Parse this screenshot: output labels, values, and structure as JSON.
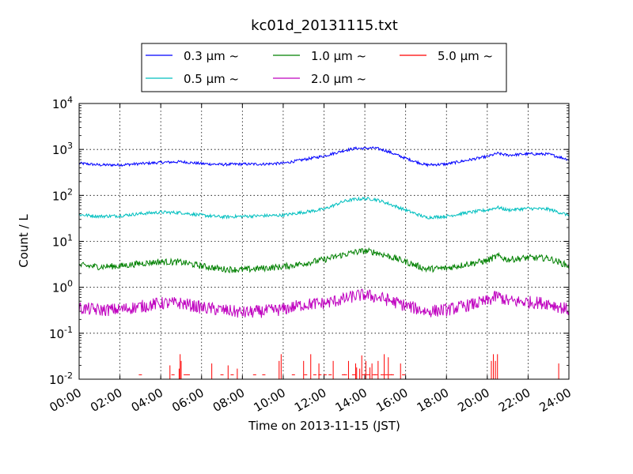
{
  "chart_data": {
    "type": "line",
    "title": "kc01d_20131115.txt",
    "xlabel": "Time on 2013-11-15 (JST)",
    "ylabel": "Count / L",
    "yscale": "log",
    "ylim": [
      0.01,
      10000
    ],
    "xlim_hours": [
      0,
      24
    ],
    "x_ticks": [
      "00:00",
      "02:00",
      "04:00",
      "06:00",
      "08:00",
      "10:00",
      "12:00",
      "14:00",
      "16:00",
      "18:00",
      "20:00",
      "22:00",
      "24:00"
    ],
    "y_ticks": [
      {
        "base": "10",
        "exp": "-2",
        "value": 0.01
      },
      {
        "base": "10",
        "exp": "-1",
        "value": 0.1
      },
      {
        "base": "10",
        "exp": "0",
        "value": 1
      },
      {
        "base": "10",
        "exp": "1",
        "value": 10
      },
      {
        "base": "10",
        "exp": "2",
        "value": 100
      },
      {
        "base": "10",
        "exp": "3",
        "value": 1000
      },
      {
        "base": "10",
        "exp": "4",
        "value": 10000
      }
    ],
    "grid": true,
    "legend_position": "top",
    "series": [
      {
        "name": "0.3 μm ~",
        "color": "#0000ff",
        "noise": 0.03,
        "x": [
          0,
          1,
          2,
          3,
          4,
          5,
          6,
          7,
          8,
          9,
          10,
          11,
          12,
          13,
          13.5,
          14,
          14.5,
          15,
          16,
          17,
          18,
          19,
          20,
          20.5,
          21,
          22,
          23,
          24
        ],
        "y": [
          500,
          460,
          460,
          490,
          520,
          540,
          490,
          470,
          480,
          480,
          500,
          600,
          720,
          950,
          1050,
          1060,
          1070,
          950,
          640,
          460,
          480,
          580,
          700,
          820,
          750,
          800,
          790,
          600
        ]
      },
      {
        "name": "0.5 μm ~",
        "color": "#00bfbf",
        "noise": 0.035,
        "x": [
          0,
          1,
          2,
          3,
          4,
          5,
          6,
          7,
          8,
          9,
          10,
          11,
          12,
          13,
          13.5,
          14,
          14.5,
          15,
          16,
          17,
          18,
          19,
          20,
          20.5,
          21,
          22,
          23,
          24
        ],
        "y": [
          38,
          35,
          36,
          40,
          43,
          42,
          37,
          34,
          35,
          36,
          37,
          43,
          50,
          75,
          82,
          85,
          82,
          70,
          48,
          33,
          35,
          42,
          48,
          55,
          48,
          52,
          50,
          37
        ]
      },
      {
        "name": "1.0 μm ~",
        "color": "#008000",
        "noise": 0.07,
        "x": [
          0,
          1,
          2,
          3,
          4,
          5,
          6,
          7,
          8,
          9,
          10,
          11,
          12,
          13,
          13.5,
          14,
          14.5,
          15,
          16,
          17,
          18,
          19,
          20,
          20.5,
          21,
          22,
          23,
          24
        ],
        "y": [
          3,
          2.8,
          2.9,
          3.3,
          3.6,
          3.5,
          2.9,
          2.5,
          2.4,
          2.6,
          2.8,
          3.3,
          4,
          5.2,
          5.8,
          6.2,
          5.8,
          5,
          3.6,
          2.5,
          2.6,
          3.2,
          3.8,
          4.8,
          4,
          4.4,
          4.3,
          2.9
        ]
      },
      {
        "name": "2.0 μm ~",
        "color": "#bf00bf",
        "noise": 0.14,
        "x": [
          0,
          1,
          2,
          3,
          4,
          5,
          6,
          7,
          8,
          9,
          10,
          11,
          12,
          13,
          13.5,
          14,
          14.5,
          15,
          16,
          17,
          18,
          19,
          20,
          20.5,
          21,
          22,
          23,
          24
        ],
        "y": [
          0.35,
          0.32,
          0.33,
          0.38,
          0.45,
          0.45,
          0.36,
          0.32,
          0.28,
          0.3,
          0.33,
          0.42,
          0.45,
          0.55,
          0.65,
          0.68,
          0.62,
          0.55,
          0.4,
          0.3,
          0.32,
          0.4,
          0.5,
          0.65,
          0.5,
          0.48,
          0.45,
          0.32
        ]
      }
    ],
    "spikes": {
      "name": "5.0 μm ~",
      "color": "#ff0000",
      "baseline": 0.0125,
      "events": [
        [
          3.0,
          0.0125
        ],
        [
          4.45,
          0.02
        ],
        [
          4.6,
          0.0125
        ],
        [
          4.9,
          0.017
        ],
        [
          4.95,
          0.035
        ],
        [
          5.0,
          0.025
        ],
        [
          5.2,
          0.0125
        ],
        [
          5.35,
          0.0125
        ],
        [
          6.5,
          0.022
        ],
        [
          7.0,
          0.0125
        ],
        [
          7.3,
          0.02
        ],
        [
          7.5,
          0.0125
        ],
        [
          7.75,
          0.017
        ],
        [
          8.6,
          0.0125
        ],
        [
          9.05,
          0.0125
        ],
        [
          9.8,
          0.025
        ],
        [
          9.9,
          0.035
        ],
        [
          10.5,
          0.0125
        ],
        [
          11.0,
          0.025
        ],
        [
          11.1,
          0.0125
        ],
        [
          11.35,
          0.035
        ],
        [
          11.55,
          0.0125
        ],
        [
          11.75,
          0.022
        ],
        [
          11.8,
          0.0125
        ],
        [
          12.05,
          0.0125
        ],
        [
          12.3,
          0.0125
        ],
        [
          12.45,
          0.025
        ],
        [
          12.95,
          0.0125
        ],
        [
          13.05,
          0.0125
        ],
        [
          13.2,
          0.025
        ],
        [
          13.45,
          0.0125
        ],
        [
          13.55,
          0.022
        ],
        [
          13.6,
          0.018
        ],
        [
          13.75,
          0.017
        ],
        [
          13.85,
          0.033
        ],
        [
          13.95,
          0.0125
        ],
        [
          14.05,
          0.025
        ],
        [
          14.15,
          0.0125
        ],
        [
          14.25,
          0.018
        ],
        [
          14.35,
          0.022
        ],
        [
          14.45,
          0.0125
        ],
        [
          14.55,
          0.0125
        ],
        [
          14.65,
          0.025
        ],
        [
          14.85,
          0.0125
        ],
        [
          14.95,
          0.035
        ],
        [
          15.05,
          0.0125
        ],
        [
          15.15,
          0.03
        ],
        [
          15.25,
          0.0125
        ],
        [
          15.35,
          0.0125
        ],
        [
          15.75,
          0.022
        ],
        [
          15.9,
          0.0125
        ],
        [
          20.2,
          0.025
        ],
        [
          20.3,
          0.035
        ],
        [
          20.4,
          0.025
        ],
        [
          20.5,
          0.035
        ],
        [
          23.5,
          0.022
        ]
      ]
    }
  }
}
